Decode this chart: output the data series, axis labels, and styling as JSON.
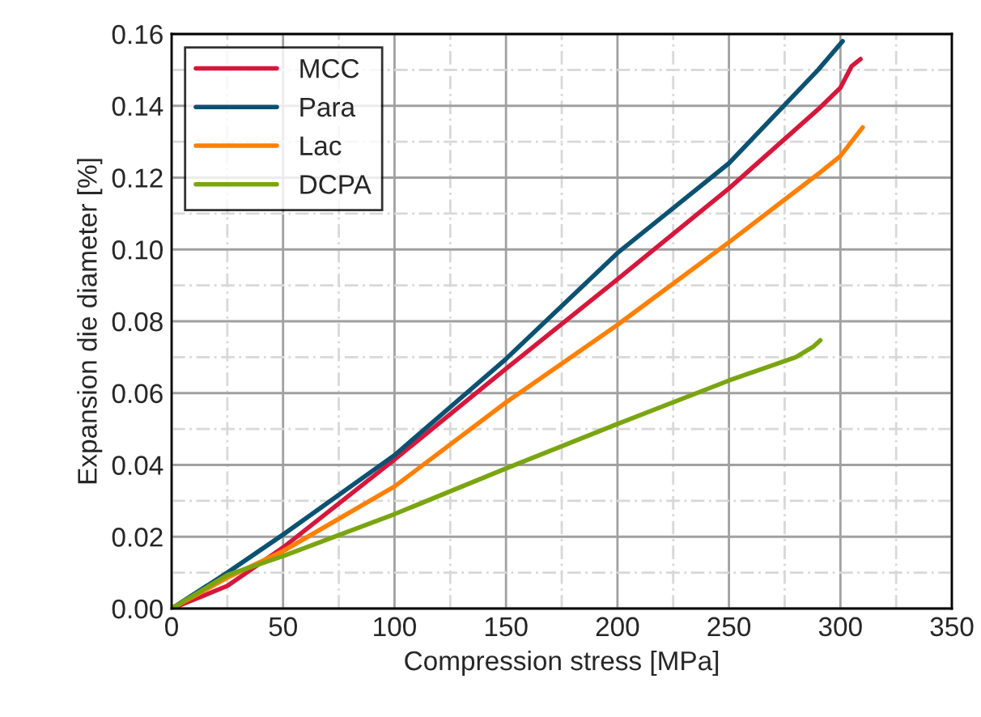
{
  "chart_data": {
    "type": "line",
    "xlabel": "Compression stress [MPa]",
    "ylabel": "Expansion die diameter [%]",
    "xlim": [
      0,
      350
    ],
    "xticks": [
      0,
      50,
      100,
      150,
      200,
      250,
      300,
      350
    ],
    "ylim": [
      0,
      0.16
    ],
    "yticks": [
      {
        "value": 0,
        "label": "0.00"
      },
      {
        "value": 0.02,
        "label": "0.02"
      },
      {
        "value": 0.04,
        "label": "0.04"
      },
      {
        "value": 0.06,
        "label": "0.06"
      },
      {
        "value": 0.08,
        "label": "0.08"
      },
      {
        "value": 0.1,
        "label": "0.10"
      },
      {
        "value": 0.12,
        "label": "0.12"
      },
      {
        "value": 0.14,
        "label": "0.14"
      },
      {
        "value": 0.16,
        "label": "0.16"
      }
    ],
    "grid": true,
    "legend": "top left",
    "marker": "none",
    "line_style": "solid",
    "series": [
      {
        "name": "MCC",
        "color": "#d6173c",
        "x": [
          0,
          25,
          50,
          100,
          150,
          200,
          250,
          290,
          300,
          305,
          309
        ],
        "values": [
          0,
          0.0063,
          0.017,
          0.0415,
          0.0668,
          0.0917,
          0.117,
          0.139,
          0.145,
          0.151,
          0.153
        ]
      },
      {
        "name": "Para",
        "color": "#0b5272",
        "x": [
          0,
          25,
          50,
          100,
          150,
          200,
          250,
          290,
          301
        ],
        "values": [
          0,
          0.01,
          0.0206,
          0.0427,
          0.0695,
          0.099,
          0.124,
          0.15,
          0.158
        ]
      },
      {
        "name": "Lac",
        "color": "#ff8000",
        "x": [
          0,
          25,
          50,
          100,
          150,
          200,
          250,
          290,
          300,
          310
        ],
        "values": [
          0,
          0.0086,
          0.016,
          0.034,
          0.0574,
          0.079,
          0.102,
          0.121,
          0.126,
          0.134
        ]
      },
      {
        "name": "DCPA",
        "color": "#7aa510",
        "x": [
          0,
          25,
          50,
          100,
          150,
          200,
          250,
          280,
          288,
          291
        ],
        "values": [
          0,
          0.0093,
          0.0146,
          0.0263,
          0.039,
          0.0514,
          0.0635,
          0.07,
          0.073,
          0.0747
        ]
      }
    ]
  }
}
